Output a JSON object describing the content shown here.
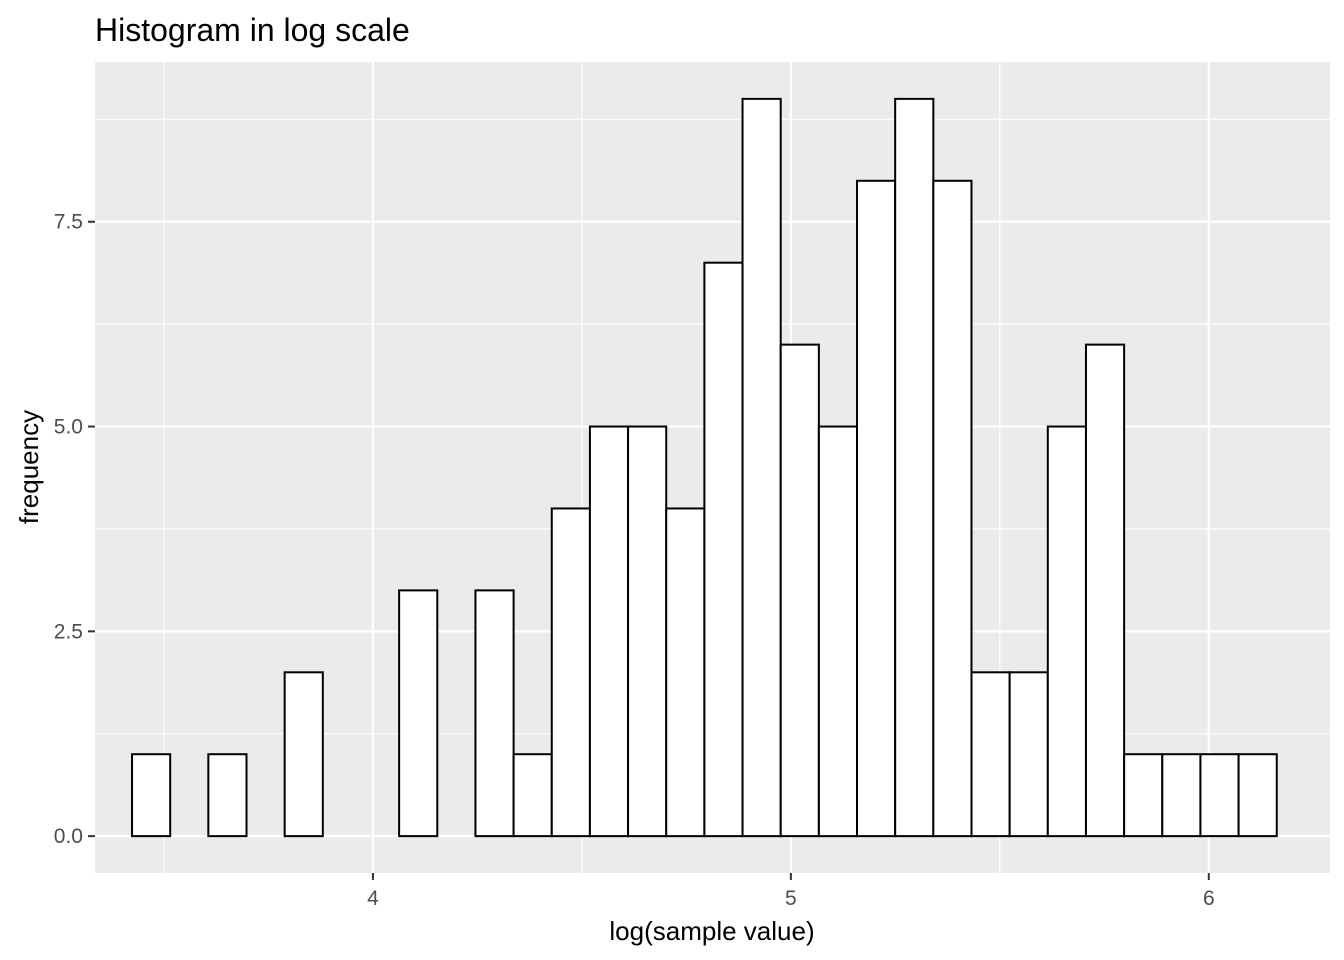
{
  "chart_data": {
    "type": "bar",
    "title": "Histogram in log scale",
    "xlabel": "log(sample value)",
    "ylabel": "frequency",
    "x_ticks": [
      4,
      5,
      6
    ],
    "x_tick_labels": [
      "4",
      "5",
      "6"
    ],
    "y_ticks": [
      0,
      2.5,
      5,
      7.5
    ],
    "y_tick_labels": [
      "0.0",
      "2.5",
      "5.0",
      "7.5"
    ],
    "xlim": [
      3.335,
      6.29
    ],
    "ylim": [
      -0.45,
      9.45
    ],
    "bin_width": 0.0913,
    "bins_start": 3.4236,
    "values": [
      1,
      0,
      1,
      0,
      2,
      0,
      0,
      3,
      0,
      3,
      1,
      4,
      5,
      5,
      4,
      7,
      9,
      6,
      5,
      8,
      9,
      8,
      2,
      2,
      5,
      6,
      1,
      1,
      1,
      1
    ],
    "grid": true,
    "colors": {
      "panel": "#ebebeb",
      "grid": "#ffffff",
      "bar_fill": "#ffffff",
      "bar_stroke": "#000000"
    }
  }
}
